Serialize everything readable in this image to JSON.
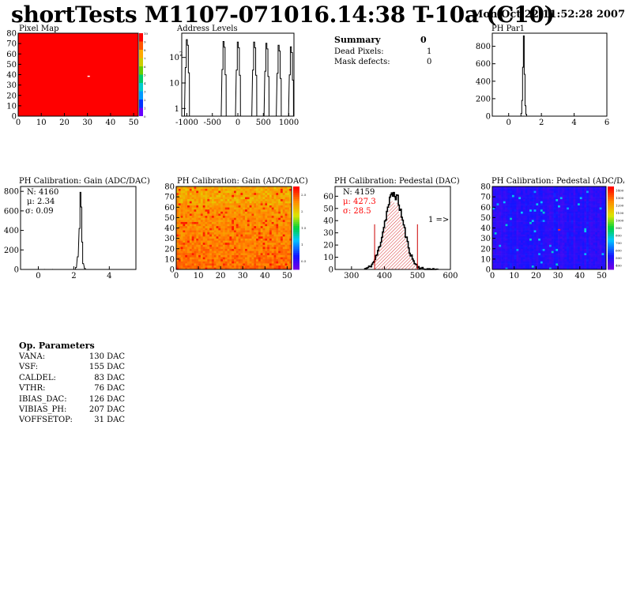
{
  "header": {
    "title": "shortTests M1107-071016.14:38 T-10a (C10)",
    "date": "Mon Oct 22 11:52:28 2007"
  },
  "summary": {
    "title": "Summary",
    "title_value": "0",
    "rows": [
      {
        "label": "Dead Pixels:",
        "value": "1"
      },
      {
        "label": "Mask defects:",
        "value": "0"
      }
    ]
  },
  "op_parameters": {
    "title": "Op. Parameters",
    "rows": [
      {
        "label": "VANA:",
        "value": "130 DAC"
      },
      {
        "label": "VSF:",
        "value": "155 DAC"
      },
      {
        "label": "CALDEL:",
        "value": "83 DAC"
      },
      {
        "label": "VTHR:",
        "value": "76 DAC"
      },
      {
        "label": "IBIAS_DAC:",
        "value": "126 DAC"
      },
      {
        "label": "VIBIAS_PH:",
        "value": "207 DAC"
      },
      {
        "label": "VOFFSETOP:",
        "value": "31 DAC"
      }
    ]
  },
  "colors": {
    "map_fill": "#ff0000",
    "gain_map_base": "#ff8000",
    "pedestal_map_base": "#1a1aff",
    "pedestal_fit": "#cc0000",
    "stat_red": "#ff0000"
  },
  "chart_data": [
    {
      "id": "pixel-map",
      "type": "heatmap",
      "title": "Pixel Map",
      "xlim": [
        0,
        52
      ],
      "ylim": [
        0,
        80
      ],
      "xticks": [
        "0",
        "10",
        "20",
        "30",
        "40",
        "50"
      ],
      "yticks": [
        "0",
        "10",
        "20",
        "30",
        "40",
        "50",
        "60",
        "70",
        "80"
      ],
      "z_scale": [
        "0",
        "1",
        "2",
        "3",
        "4",
        "5",
        "6",
        "7",
        "8",
        "9",
        "10"
      ],
      "fill_value": 10,
      "special_cells": [
        {
          "x": 30,
          "y": 38,
          "value": 0
        }
      ]
    },
    {
      "id": "address-levels",
      "type": "bar",
      "title": "Address Levels",
      "xlim": [
        -1100,
        1100
      ],
      "log_y": true,
      "xticks": [
        "-1000",
        "-500",
        "0",
        "500",
        "1000"
      ],
      "yticks": [
        "1",
        "10",
        "10^2"
      ],
      "peaks": [
        {
          "x": -1000,
          "y": 500
        },
        {
          "x": -280,
          "y": 420
        },
        {
          "x": 0,
          "y": 400
        },
        {
          "x": 320,
          "y": 400
        },
        {
          "x": 560,
          "y": 360
        },
        {
          "x": 800,
          "y": 300
        },
        {
          "x": 1040,
          "y": 260
        }
      ]
    },
    {
      "id": "ph-par1",
      "type": "bar",
      "title": "PH Par1",
      "xlim": [
        -1,
        6
      ],
      "ylim": [
        0,
        950
      ],
      "xticks": [
        "0",
        "2",
        "4",
        "6"
      ],
      "yticks": [
        "0",
        "200",
        "400",
        "600",
        "800"
      ],
      "x": [
        0.75,
        0.8,
        0.85,
        0.9,
        0.95,
        1.0,
        1.05
      ],
      "values": [
        30,
        180,
        560,
        920,
        480,
        120,
        20
      ]
    },
    {
      "id": "gain-hist",
      "type": "bar",
      "title": "PH Calibration: Gain (ADC/DAC)",
      "xlim": [
        -1,
        5.5
      ],
      "ylim": [
        0,
        850
      ],
      "xticks": [
        "0",
        "2",
        "4"
      ],
      "yticks": [
        "0",
        "200",
        "400",
        "600",
        "800"
      ],
      "stats": {
        "entries": "N: 4160",
        "mean": "μ: 2.34",
        "sigma": "σ: 0.09"
      },
      "x": [
        2.1,
        2.2,
        2.3,
        2.35,
        2.4,
        2.45,
        2.5,
        2.6
      ],
      "values": [
        20,
        130,
        420,
        790,
        640,
        280,
        60,
        10
      ]
    },
    {
      "id": "gain-map",
      "type": "heatmap",
      "title": "PH Calibration: Gain (ADC/DAC)",
      "xlim": [
        0,
        52
      ],
      "ylim": [
        0,
        80
      ],
      "xticks": [
        "0",
        "10",
        "20",
        "30",
        "40",
        "50"
      ],
      "yticks": [
        "0",
        "10",
        "20",
        "30",
        "40",
        "50",
        "60",
        "70",
        "80"
      ],
      "z_scale": [
        "0.5",
        "1",
        "1.5",
        "2",
        "2.5"
      ]
    },
    {
      "id": "pedestal-hist",
      "type": "bar",
      "title": "PH Calibration: Pedestal (DAC)",
      "xlim": [
        250,
        600
      ],
      "ylim": [
        0,
        68
      ],
      "xticks": [
        "300",
        "400",
        "500",
        "600"
      ],
      "yticks": [
        "0",
        "10",
        "20",
        "30",
        "40",
        "50",
        "60"
      ],
      "stats": {
        "entries": "N: 4159",
        "mean": "μ: 427.3",
        "sigma": "σ: 28.5"
      },
      "annotation": "1 =>",
      "cut_lines": [
        370,
        500
      ],
      "gauss": {
        "mean": 427.3,
        "sigma": 28.5,
        "peak": 62
      }
    },
    {
      "id": "pedestal-map",
      "type": "heatmap",
      "title": "PH Calibration: Pedestal (ADC/DAC)",
      "xlim": [
        0,
        52
      ],
      "ylim": [
        0,
        80
      ],
      "xticks": [
        "0",
        "10",
        "20",
        "30",
        "40",
        "50"
      ],
      "yticks": [
        "0",
        "10",
        "20",
        "30",
        "40",
        "50",
        "60",
        "70",
        "80"
      ],
      "z_scale": [
        "400",
        "500",
        "600",
        "700",
        "800",
        "900",
        "1000",
        "1100",
        "1200",
        "1300",
        "1400"
      ]
    }
  ]
}
